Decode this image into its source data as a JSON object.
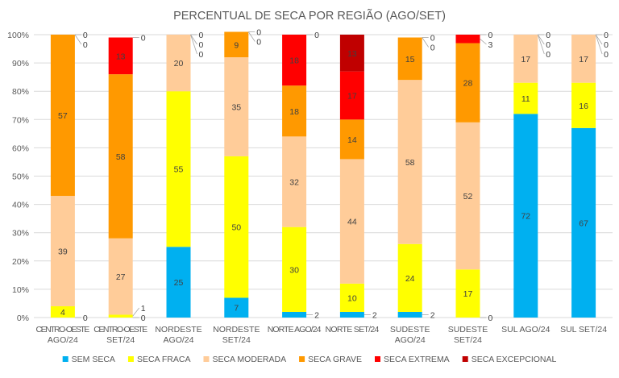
{
  "chart_data": {
    "type": "bar",
    "stacked": true,
    "title": "PERCENTUAL DE SECA POR REGIÃO (AGO/SET)",
    "categories": [
      [
        "CENTRO-OESTE",
        "AGO/24"
      ],
      [
        "CENTRO-OESTE",
        "SET/24"
      ],
      [
        "NORDESTE",
        "AGO/24"
      ],
      [
        "NORDESTE",
        "SET/24"
      ],
      [
        "NORTE AGO/24"
      ],
      [
        "NORTE SET/24"
      ],
      [
        "SUDESTE",
        "AGO/24"
      ],
      [
        "SUDESTE",
        "SET/24"
      ],
      [
        "SUL AGO/24"
      ],
      [
        "SUL SET/24"
      ]
    ],
    "ylim": [
      0,
      100
    ],
    "yticks": [
      "0%",
      "10%",
      "20%",
      "30%",
      "40%",
      "50%",
      "60%",
      "70%",
      "80%",
      "90%",
      "100%"
    ],
    "grid": true,
    "legend_position": "bottom",
    "series": [
      {
        "name": "SEM SECA",
        "color": "#00B0F0",
        "values": [
          0,
          0,
          25,
          7,
          2,
          2,
          2,
          0,
          72,
          67
        ]
      },
      {
        "name": "SECA FRACA",
        "color": "#FFFF00",
        "values": [
          4,
          1,
          55,
          50,
          30,
          10,
          24,
          17,
          11,
          16
        ]
      },
      {
        "name": "SECA MODERADA",
        "color": "#FFCC99",
        "values": [
          39,
          27,
          20,
          35,
          32,
          44,
          58,
          52,
          17,
          17
        ]
      },
      {
        "name": "SECA GRAVE",
        "color": "#FF9900",
        "values": [
          57,
          58,
          0,
          9,
          18,
          14,
          15,
          28,
          0,
          0
        ]
      },
      {
        "name": "SECA EXTREMA",
        "color": "#FF0000",
        "values": [
          0,
          13,
          0,
          0,
          18,
          17,
          0,
          3,
          0,
          0
        ]
      },
      {
        "name": "SECA EXCEPCIONAL",
        "color": "#C00000",
        "values": [
          0,
          0,
          0,
          0,
          0,
          13,
          0,
          0,
          0,
          0
        ]
      }
    ]
  }
}
